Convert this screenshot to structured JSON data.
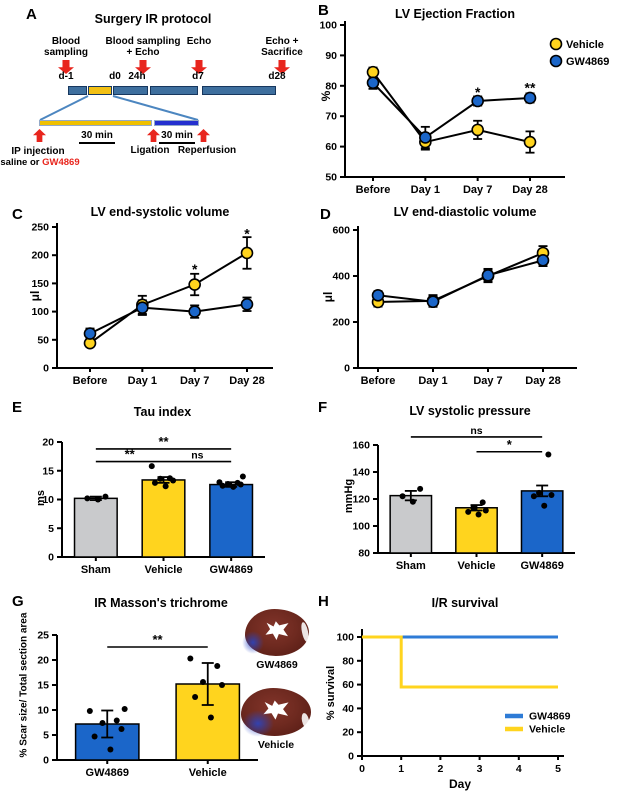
{
  "panel_letters": {
    "a": "A",
    "b": "B",
    "c": "C",
    "d": "D",
    "e": "E",
    "f": "F",
    "g": "G",
    "h": "H"
  },
  "colors": {
    "vehicle_yellow": "#FFD41E",
    "gw4869_blue": "#1B66C9",
    "sham_gray": "#C9CACC",
    "timeline_bar_blue": "#3E6F9E",
    "timeline_bar_yellow": "#F2C014",
    "zoom_bar_yellow": "#EFC000",
    "zoom_bar_blue": "#2430CF",
    "arrow_red": "#E8251D",
    "survival_blue": "#2E7BD6"
  },
  "protocol": {
    "title": "Surgery IR protocol",
    "events": [
      {
        "line1": "Blood",
        "line2": "sampling"
      },
      {
        "line1": "Blood sampling",
        "line2": "+ Echo"
      },
      {
        "line1": "Echo",
        "line2": ""
      },
      {
        "line1": "Echo +",
        "line2": "Sacrifice"
      }
    ],
    "timepoints": [
      "d-1",
      "d0",
      "24h",
      "d7",
      "d28"
    ],
    "zoom_detail": {
      "duration1": "30 min",
      "duration2": "30 min",
      "injection_line1": "IP injection",
      "injection_line2_prefix": "saline or ",
      "injection_line2_drug": "GW4869",
      "ligation": "Ligation",
      "reperfusion": "Reperfusion"
    }
  },
  "histology": {
    "images": [
      {
        "label": "GW4869"
      },
      {
        "label": "Vehicle"
      }
    ]
  },
  "chart_data": [
    {
      "id": "B",
      "type": "line",
      "title": "LV Ejection Fraction",
      "ylabel": "%",
      "ymin": 50,
      "ymax": 100,
      "ystep": 10,
      "categories": [
        "Before",
        "Day 1",
        "Day 7",
        "Day 28"
      ],
      "series": [
        {
          "name": "Vehicle",
          "color": "#FFD41E",
          "values": [
            84.5,
            61.5,
            65.5,
            61.5
          ],
          "errors": [
            1.5,
            2.5,
            3,
            3.5
          ]
        },
        {
          "name": "GW4869",
          "color": "#1B66C9",
          "values": [
            81,
            63,
            75,
            76
          ],
          "errors": [
            2,
            3.5,
            1.5,
            1.5
          ]
        }
      ],
      "annotations": [
        {
          "cat": 2,
          "value": 79,
          "text": "*"
        },
        {
          "cat": 3,
          "value": 80.5,
          "text": "**"
        }
      ],
      "legend": true
    },
    {
      "id": "C",
      "type": "line",
      "title": "LV end-systolic volume",
      "ylabel": "μl",
      "ymin": 0,
      "ymax": 250,
      "ystep": 50,
      "categories": [
        "Before",
        "Day 1",
        "Day 7",
        "Day 28"
      ],
      "series": [
        {
          "name": "Vehicle",
          "color": "#FFD41E",
          "values": [
            44,
            112,
            148,
            204
          ],
          "errors": [
            6,
            16,
            19,
            28
          ]
        },
        {
          "name": "GW4869",
          "color": "#1B66C9",
          "values": [
            61,
            107,
            100,
            113
          ],
          "errors": [
            9,
            13,
            11,
            12
          ]
        }
      ],
      "annotations": [
        {
          "cat": 2,
          "value": 181,
          "text": "*"
        },
        {
          "cat": 3,
          "value": 244,
          "text": "*"
        }
      ]
    },
    {
      "id": "D",
      "type": "line",
      "title": "LV end-diastolic volume",
      "ylabel": "μl",
      "ymin": 0,
      "ymax": 600,
      "ystep": 200,
      "categories": [
        "Before",
        "Day 1",
        "Day 7",
        "Day 28"
      ],
      "series": [
        {
          "name": "Vehicle",
          "color": "#FFD41E",
          "values": [
            287,
            292,
            400,
            500
          ],
          "errors": [
            20,
            25,
            27,
            30
          ]
        },
        {
          "name": "GW4869",
          "color": "#1B66C9",
          "values": [
            316,
            288,
            403,
            468
          ],
          "errors": [
            18,
            22,
            28,
            25
          ]
        }
      ],
      "annotations": []
    },
    {
      "id": "E",
      "type": "bar",
      "title": "Tau index",
      "ylabel": "ms",
      "ymin": 0,
      "ymax": 20,
      "ystep": 5,
      "bars": [
        {
          "label": "Sham",
          "color": "#C9CACC",
          "value": 10.2,
          "error": 0.3,
          "points": [
            10.0,
            10.2,
            10.5
          ]
        },
        {
          "label": "Vehicle",
          "color": "#FFD41E",
          "value": 13.4,
          "error": 0.5,
          "points": [
            12.3,
            12.9,
            13.3,
            13.6,
            13.7,
            15.8
          ]
        },
        {
          "label": "GW4869",
          "color": "#1B66C9",
          "value": 12.6,
          "error": 0.4,
          "points": [
            12.2,
            12.4,
            12.6,
            12.7,
            12.9,
            13.0,
            14.0
          ]
        }
      ],
      "brackets": [
        {
          "from": 0,
          "to": 1,
          "value": 16.6,
          "text": "**"
        },
        {
          "from": 1,
          "to": 2,
          "value": 16.6,
          "text": "ns"
        },
        {
          "from": 0,
          "to": 2,
          "value": 18.8,
          "text": "**"
        }
      ]
    },
    {
      "id": "F",
      "type": "bar",
      "title": "LV systolic pressure",
      "ylabel": "mmHg",
      "ymin": 80,
      "ymax": 160,
      "ystep": 20,
      "bars": [
        {
          "label": "Sham",
          "color": "#C9CACC",
          "value": 122.5,
          "error": 3.5,
          "points": [
            118,
            122,
            127.5
          ]
        },
        {
          "label": "Vehicle",
          "color": "#FFD41E",
          "value": 113.5,
          "error": 2,
          "points": [
            108.5,
            110.5,
            111.5,
            113.5,
            117.5
          ]
        },
        {
          "label": "GW4869",
          "color": "#1B66C9",
          "value": 126,
          "error": 4,
          "points": [
            115,
            122,
            123,
            124.5,
            153
          ]
        }
      ],
      "brackets": [
        {
          "from": 1,
          "to": 2,
          "value": 155,
          "text": "*"
        },
        {
          "from": 0,
          "to": 2,
          "value": 166,
          "text": "ns"
        }
      ]
    },
    {
      "id": "G",
      "type": "bar",
      "title": "IR Masson's trichrome",
      "ylabel": "% Scar size/ Total section area",
      "ymin": 0,
      "ymax": 25,
      "ystep": 5,
      "bars": [
        {
          "label": "GW4869",
          "color": "#1B66C9",
          "value": 7.2,
          "error": 2.7,
          "points": [
            2.1,
            4.7,
            6.2,
            7.4,
            7.9,
            9.8,
            10.2
          ]
        },
        {
          "label": "Vehicle",
          "color": "#FFD41E",
          "value": 15.2,
          "error": 4.2,
          "points": [
            8.5,
            12.6,
            15.0,
            15.6,
            18.8,
            20.3
          ]
        }
      ],
      "brackets": [
        {
          "from": 0,
          "to": 1,
          "value": 22.6,
          "text": "**"
        }
      ]
    },
    {
      "id": "H",
      "type": "step",
      "title": "I/R survival",
      "ylabel": "% survival",
      "xlabel": "Day",
      "ymin": 0,
      "ymax": 100,
      "ystep": 20,
      "xmin": 0,
      "xmax": 5,
      "xstep": 1,
      "series": [
        {
          "name": "GW4869",
          "color": "#2E7BD6",
          "points": [
            [
              0,
              100
            ],
            [
              5,
              100
            ]
          ]
        },
        {
          "name": "Vehicle",
          "color": "#FFD41E",
          "points": [
            [
              0,
              100
            ],
            [
              1,
              100
            ],
            [
              1,
              58
            ],
            [
              5,
              58
            ]
          ]
        }
      ],
      "legend": true
    }
  ]
}
